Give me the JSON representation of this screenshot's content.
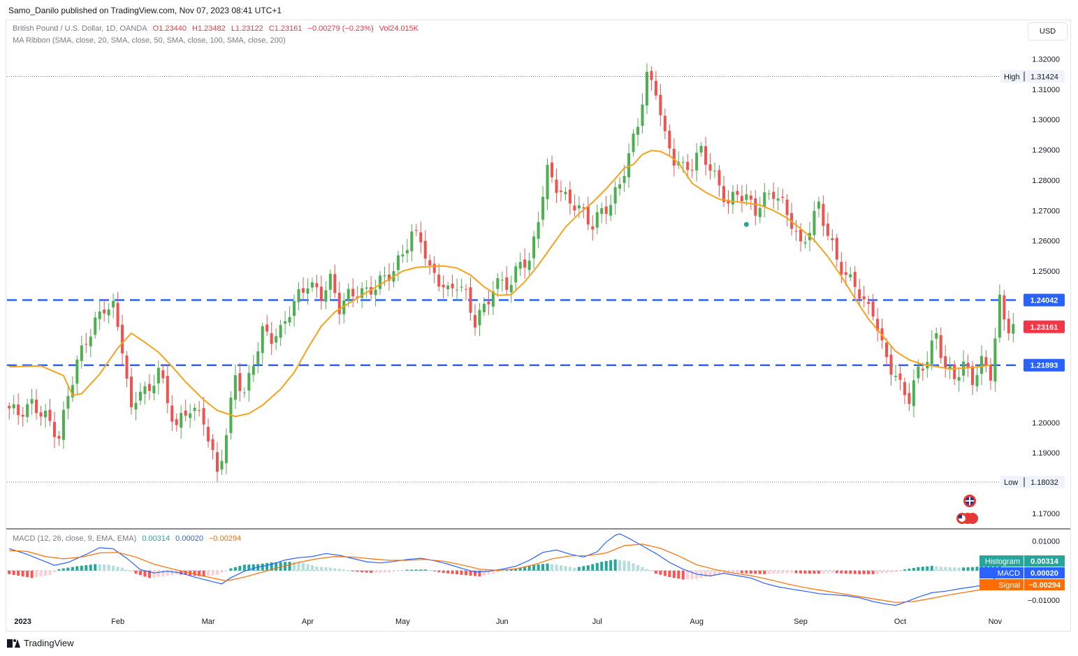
{
  "header": {
    "publisher": "Samo_Danilo published on TradingView.com, Nov 07, 2023 08:41 UTC+1"
  },
  "legend": {
    "symbol": "British Pound / U.S. Dollar, 1D, OANDA",
    "open": "O1.23440",
    "high": "H1.23482",
    "low": "L1.23122",
    "close": "C1.23161",
    "change": "−0.00279 (−0.23%)",
    "volume": "Vol24.015K",
    "ma_ribbon": "MA Ribbon (SMA, close, 20, SMA, close, 50, SMA, close, 100, SMA, close, 200)",
    "macd_title": "MACD (12, 26, close, 9, EMA, EMA)",
    "macd_hist": "0.00314",
    "macd_line": "0.00020",
    "macd_signal": "−0.00294"
  },
  "currency_button": "USD",
  "footer": {
    "brand": "TradingView"
  },
  "colors": {
    "up": "#26a69a",
    "down": "#f23645",
    "bull_candle": "#4caf50",
    "bear_candle": "#ef5350",
    "ma": "#f7a21b",
    "level": "#2962ff",
    "macd": "#2962ff",
    "signal": "#ff6d00",
    "hist_up_strong": "#26a69a",
    "hist_up_weak": "#b2dfdb",
    "hist_down_strong": "#ff5252",
    "hist_down_weak": "#ffcdd2"
  },
  "chart_data": {
    "type": "candlestick",
    "x_axis": {
      "labels": [
        "2023",
        "Feb",
        "Mar",
        "Apr",
        "May",
        "Jun",
        "Jul",
        "Aug",
        "Sep",
        "Oct",
        "Nov"
      ],
      "label_bar_index": [
        3,
        24,
        44,
        66,
        87,
        109,
        130,
        152,
        175,
        197,
        218
      ]
    },
    "y_axis": {
      "ticks": [
        "1.32000",
        "1.31000",
        "1.30000",
        "1.29000",
        "1.28000",
        "1.27000",
        "1.26000",
        "1.25000",
        "1.20000",
        "1.19000",
        "1.17000"
      ],
      "tick_values": [
        1.32,
        1.31,
        1.3,
        1.29,
        1.28,
        1.27,
        1.26,
        1.25,
        1.2,
        1.19,
        1.17
      ],
      "range": [
        1.1656,
        1.3238
      ]
    },
    "markers": [
      {
        "label": "High",
        "value": "1.31424",
        "v": 1.31424
      },
      {
        "label": "Low",
        "value": "1.18032",
        "v": 1.18032
      }
    ],
    "levels": [
      {
        "value": "1.24042",
        "v": 1.24042
      },
      {
        "value": "1.21893",
        "v": 1.21893
      }
    ],
    "last_price": {
      "value": "1.23161",
      "v": 1.23161
    },
    "ma_line": {
      "name": "SMA 20",
      "points": [
        [
          0,
          1.2184
        ],
        [
          7,
          1.2187
        ],
        [
          12,
          1.2155
        ],
        [
          14,
          1.209
        ],
        [
          16,
          1.2095
        ],
        [
          20,
          1.216
        ],
        [
          24,
          1.2246
        ],
        [
          27,
          1.2295
        ],
        [
          30,
          1.2265
        ],
        [
          33,
          1.2232
        ],
        [
          36,
          1.2185
        ],
        [
          39,
          1.2134
        ],
        [
          43,
          1.2075
        ],
        [
          46,
          1.204
        ],
        [
          50,
          1.202
        ],
        [
          53,
          1.203
        ],
        [
          56,
          1.2057
        ],
        [
          60,
          1.211
        ],
        [
          63,
          1.2165
        ],
        [
          66,
          1.2245
        ],
        [
          69,
          1.2318
        ],
        [
          72,
          1.2365
        ],
        [
          75,
          1.2393
        ],
        [
          78,
          1.242
        ],
        [
          81,
          1.2447
        ],
        [
          84,
          1.2473
        ],
        [
          87,
          1.25
        ],
        [
          90,
          1.2512
        ],
        [
          93,
          1.2515
        ],
        [
          96,
          1.2517
        ],
        [
          99,
          1.251
        ],
        [
          102,
          1.2487
        ],
        [
          105,
          1.2448
        ],
        [
          108,
          1.242
        ],
        [
          111,
          1.2422
        ],
        [
          114,
          1.2465
        ],
        [
          117,
          1.252
        ],
        [
          120,
          1.2583
        ],
        [
          123,
          1.2645
        ],
        [
          126,
          1.269
        ],
        [
          129,
          1.2727
        ],
        [
          132,
          1.2772
        ],
        [
          134,
          1.2805
        ],
        [
          136,
          1.284
        ],
        [
          138,
          1.2852
        ],
        [
          140,
          1.2885
        ],
        [
          142,
          1.2898
        ],
        [
          144,
          1.2895
        ],
        [
          146,
          1.288
        ],
        [
          148,
          1.2857
        ],
        [
          151,
          1.279
        ],
        [
          154,
          1.276
        ],
        [
          157,
          1.2737
        ],
        [
          160,
          1.273
        ],
        [
          163,
          1.2725
        ],
        [
          166,
          1.2718
        ],
        [
          169,
          1.27
        ],
        [
          172,
          1.2675
        ],
        [
          175,
          1.264
        ],
        [
          178,
          1.2602
        ],
        [
          181,
          1.2548
        ],
        [
          184,
          1.2483
        ],
        [
          187,
          1.241
        ],
        [
          190,
          1.2342
        ],
        [
          193,
          1.2288
        ],
        [
          196,
          1.2235
        ],
        [
          199,
          1.2207
        ],
        [
          202,
          1.2192
        ],
        [
          205,
          1.2185
        ],
        [
          208,
          1.2177
        ],
        [
          211,
          1.218
        ],
        [
          214,
          1.2183
        ],
        [
          217,
          1.219
        ]
      ]
    },
    "macd_axis": {
      "ticks": [
        "0.01000",
        "−0.01000"
      ],
      "tick_values": [
        0.01,
        -0.01
      ],
      "range": [
        -0.0131,
        0.013
      ]
    },
    "macd_series": [
      {
        "name": "MACD",
        "points": [
          [
            0,
            0.0075
          ],
          [
            4,
            0.0055
          ],
          [
            8,
            0.003
          ],
          [
            10,
            0.0018
          ],
          [
            13,
            0.0028
          ],
          [
            17,
            0.0055
          ],
          [
            20,
            0.0078
          ],
          [
            23,
            0.0074
          ],
          [
            26,
            0.0042
          ],
          [
            29,
            0.0003
          ],
          [
            32,
            -0.0008
          ],
          [
            35,
            -0.0002
          ],
          [
            38,
            -0.0008
          ],
          [
            41,
            -0.0022
          ],
          [
            44,
            -0.0034
          ],
          [
            47,
            -0.0045
          ],
          [
            49,
            -0.0024
          ],
          [
            52,
            -0.0002
          ],
          [
            55,
            0.0012
          ],
          [
            58,
            0.0021
          ],
          [
            61,
            0.0036
          ],
          [
            64,
            0.0044
          ],
          [
            67,
            0.0048
          ],
          [
            70,
            0.0058
          ],
          [
            73,
            0.0052
          ],
          [
            76,
            0.0041
          ],
          [
            79,
            0.003
          ],
          [
            82,
            0.0026
          ],
          [
            85,
            0.0031
          ],
          [
            88,
            0.0038
          ],
          [
            91,
            0.0042
          ],
          [
            94,
            0.0034
          ],
          [
            97,
            0.0022
          ],
          [
            100,
            0.0008
          ],
          [
            103,
            -0.0005
          ],
          [
            106,
            -0.0002
          ],
          [
            109,
            0.0005
          ],
          [
            112,
            0.0015
          ],
          [
            115,
            0.0035
          ],
          [
            118,
            0.0062
          ],
          [
            121,
            0.007
          ],
          [
            124,
            0.0056
          ],
          [
            127,
            0.0046
          ],
          [
            130,
            0.0064
          ],
          [
            132,
            0.0097
          ],
          [
            134,
            0.012
          ],
          [
            135,
            0.0125
          ],
          [
            137,
            0.011
          ],
          [
            140,
            0.0084
          ],
          [
            143,
            0.0058
          ],
          [
            146,
            0.0028
          ],
          [
            149,
            0.0005
          ],
          [
            152,
            -0.0012
          ],
          [
            155,
            -0.0018
          ],
          [
            158,
            -0.0009
          ],
          [
            161,
            -0.0017
          ],
          [
            164,
            -0.0025
          ],
          [
            167,
            -0.0043
          ],
          [
            170,
            -0.0055
          ],
          [
            173,
            -0.0063
          ],
          [
            176,
            -0.007
          ],
          [
            179,
            -0.0078
          ],
          [
            182,
            -0.0082
          ],
          [
            185,
            -0.0085
          ],
          [
            188,
            -0.0092
          ],
          [
            191,
            -0.0105
          ],
          [
            194,
            -0.0114
          ],
          [
            196,
            -0.0118
          ],
          [
            198,
            -0.0108
          ],
          [
            201,
            -0.009
          ],
          [
            204,
            -0.0075
          ],
          [
            207,
            -0.007
          ],
          [
            210,
            -0.0062
          ],
          [
            213,
            -0.0055
          ],
          [
            216,
            -0.0048
          ],
          [
            218,
            -0.0025
          ],
          [
            219,
            0.0002
          ]
        ]
      },
      {
        "name": "Signal",
        "points": [
          [
            0,
            0.0068
          ],
          [
            4,
            0.0065
          ],
          [
            8,
            0.0048
          ],
          [
            12,
            0.004
          ],
          [
            16,
            0.0046
          ],
          [
            20,
            0.006
          ],
          [
            24,
            0.0062
          ],
          [
            28,
            0.0046
          ],
          [
            32,
            0.0022
          ],
          [
            36,
            0.0006
          ],
          [
            40,
            -0.0008
          ],
          [
            44,
            -0.0022
          ],
          [
            48,
            -0.0035
          ],
          [
            52,
            -0.0022
          ],
          [
            56,
            -0.0005
          ],
          [
            60,
            0.0012
          ],
          [
            64,
            0.0028
          ],
          [
            68,
            0.004
          ],
          [
            72,
            0.0048
          ],
          [
            76,
            0.0046
          ],
          [
            80,
            0.004
          ],
          [
            84,
            0.0035
          ],
          [
            88,
            0.0035
          ],
          [
            92,
            0.0038
          ],
          [
            96,
            0.0032
          ],
          [
            100,
            0.002
          ],
          [
            104,
            0.0005
          ],
          [
            108,
            0.0001
          ],
          [
            112,
            0.0006
          ],
          [
            116,
            0.002
          ],
          [
            120,
            0.004
          ],
          [
            124,
            0.005
          ],
          [
            128,
            0.0051
          ],
          [
            132,
            0.006
          ],
          [
            136,
            0.0085
          ],
          [
            140,
            0.009
          ],
          [
            144,
            0.0076
          ],
          [
            148,
            0.005
          ],
          [
            152,
            0.002
          ],
          [
            156,
            0.0004
          ],
          [
            160,
            -0.0008
          ],
          [
            164,
            -0.0017
          ],
          [
            168,
            -0.003
          ],
          [
            172,
            -0.0045
          ],
          [
            176,
            -0.0058
          ],
          [
            180,
            -0.0068
          ],
          [
            184,
            -0.0078
          ],
          [
            188,
            -0.0088
          ],
          [
            192,
            -0.0098
          ],
          [
            196,
            -0.0108
          ],
          [
            200,
            -0.0105
          ],
          [
            204,
            -0.0094
          ],
          [
            208,
            -0.0082
          ],
          [
            212,
            -0.0072
          ],
          [
            216,
            -0.0062
          ],
          [
            219,
            -0.0029
          ]
        ]
      }
    ],
    "histogram_profile": [
      [
        0,
        -0.0012
      ],
      [
        5,
        -0.0025
      ],
      [
        9,
        -0.0015
      ],
      [
        11,
        0.0005
      ],
      [
        15,
        0.0015
      ],
      [
        19,
        0.0022
      ],
      [
        22,
        0.002
      ],
      [
        25,
        0.001
      ],
      [
        28,
        -0.001
      ],
      [
        31,
        -0.0025
      ],
      [
        34,
        -0.002
      ],
      [
        37,
        -0.0012
      ],
      [
        40,
        -0.0016
      ],
      [
        43,
        -0.002
      ],
      [
        46,
        -0.0014
      ],
      [
        49,
        0.0008
      ],
      [
        52,
        0.002
      ],
      [
        55,
        0.0022
      ],
      [
        58,
        0.0028
      ],
      [
        62,
        0.003
      ],
      [
        65,
        0.0026
      ],
      [
        68,
        0.0014
      ],
      [
        71,
        0.001
      ],
      [
        74,
        0.0004
      ],
      [
        77,
        -0.0004
      ],
      [
        80,
        -0.0008
      ],
      [
        84,
        -0.0006
      ],
      [
        88,
        0.0003
      ],
      [
        92,
        0.0004
      ],
      [
        96,
        -0.0008
      ],
      [
        100,
        -0.0014
      ],
      [
        104,
        -0.002
      ],
      [
        107,
        -0.001
      ],
      [
        110,
        0.0003
      ],
      [
        113,
        0.001
      ],
      [
        116,
        0.002
      ],
      [
        119,
        0.0024
      ],
      [
        122,
        0.0018
      ],
      [
        125,
        0.001
      ],
      [
        128,
        0.0018
      ],
      [
        131,
        0.003
      ],
      [
        134,
        0.0038
      ],
      [
        137,
        0.0032
      ],
      [
        140,
        0.0012
      ],
      [
        143,
        -0.001
      ],
      [
        146,
        -0.0022
      ],
      [
        149,
        -0.003
      ],
      [
        152,
        -0.0028
      ],
      [
        155,
        -0.0018
      ],
      [
        158,
        -0.001
      ],
      [
        161,
        -0.0008
      ],
      [
        164,
        -0.001
      ],
      [
        167,
        -0.0012
      ],
      [
        170,
        -0.001
      ],
      [
        173,
        -0.0008
      ],
      [
        176,
        -0.001
      ],
      [
        179,
        -0.001
      ],
      [
        182,
        -0.0008
      ],
      [
        185,
        -0.001
      ],
      [
        188,
        -0.0012
      ],
      [
        191,
        -0.0012
      ],
      [
        194,
        -0.0008
      ],
      [
        196,
        -0.0005
      ],
      [
        198,
        0.0004
      ],
      [
        201,
        0.0012
      ],
      [
        204,
        0.0016
      ],
      [
        207,
        0.0012
      ],
      [
        210,
        0.001
      ],
      [
        213,
        0.0012
      ],
      [
        216,
        0.0016
      ],
      [
        219,
        0.0031
      ]
    ]
  }
}
